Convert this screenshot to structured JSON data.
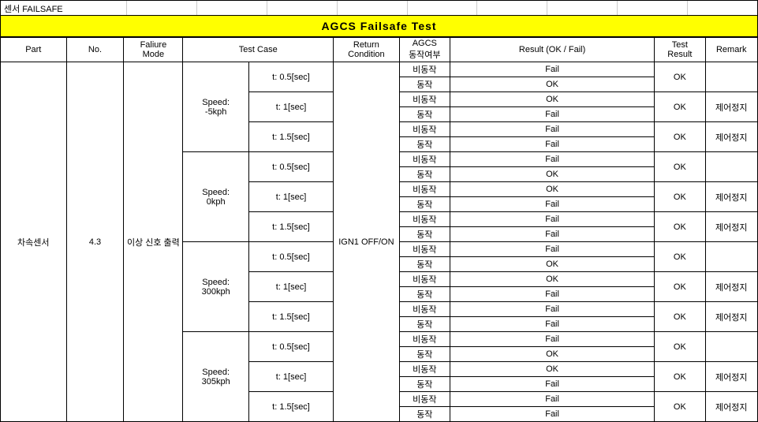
{
  "top_label": "센서 FAILSAFE",
  "title": "AGCS Failsafe Test",
  "headers": {
    "part": "Part",
    "no": "No.",
    "mode": "Faliure\nMode",
    "testcase": "Test Case",
    "return": "Return\nCondition",
    "agcs": "AGCS\n동작여부",
    "result": "Result (OK / Fail)",
    "tresult": "Test\nResult",
    "remark": "Remark"
  },
  "part": "차속센서",
  "no": "4.3",
  "mode": "이상 신호 출력",
  "return_cond": "IGN1 OFF/ON",
  "speeds": [
    "Speed:\n-5kph",
    "Speed:\n0kph",
    "Speed:\n300kph",
    "Speed:\n305kph"
  ],
  "times": [
    "t: 0.5[sec]",
    "t: 1[sec]",
    "t: 1.5[sec]"
  ],
  "agcs_states": [
    "비동작",
    "동작"
  ],
  "results": [
    [
      "Fail",
      "OK",
      "OK",
      "Fail",
      "Fail",
      "Fail"
    ],
    [
      "Fail",
      "OK",
      "OK",
      "Fail",
      "Fail",
      "Fail"
    ],
    [
      "Fail",
      "OK",
      "OK",
      "Fail",
      "Fail",
      "Fail"
    ],
    [
      "Fail",
      "OK",
      "OK",
      "Fail",
      "Fail",
      "Fail"
    ]
  ],
  "test_results": [
    [
      "OK",
      "OK",
      "OK"
    ],
    [
      "OK",
      "OK",
      "OK"
    ],
    [
      "OK",
      "OK",
      "OK"
    ],
    [
      "OK",
      "OK",
      "OK"
    ]
  ],
  "remarks": [
    [
      "",
      "제어정지",
      "제어정지"
    ],
    [
      "",
      "제어정지",
      "제어정지"
    ],
    [
      "",
      "제어정지",
      "제어정지"
    ],
    [
      "",
      "제어정지",
      "제어정지"
    ]
  ]
}
